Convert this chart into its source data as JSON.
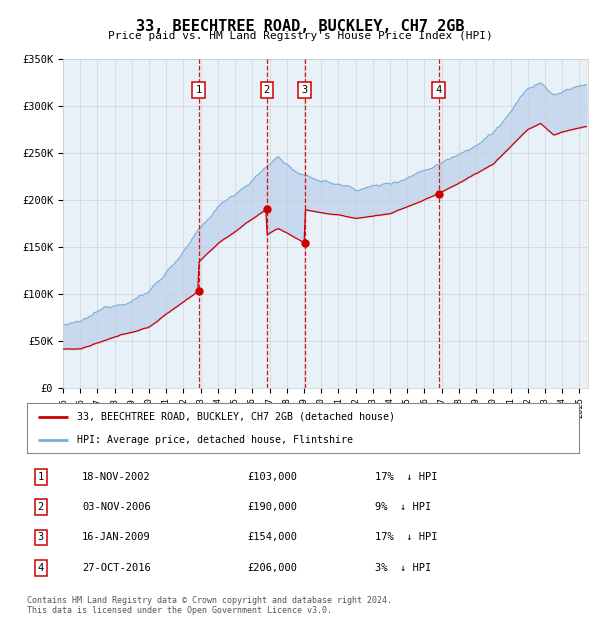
{
  "title": "33, BEECHTREE ROAD, BUCKLEY, CH7 2GB",
  "subtitle": "Price paid vs. HM Land Registry's House Price Index (HPI)",
  "ylim": [
    0,
    350000
  ],
  "yticks": [
    0,
    50000,
    100000,
    150000,
    200000,
    250000,
    300000,
    350000
  ],
  "ytick_labels": [
    "£0",
    "£50K",
    "£100K",
    "£150K",
    "£200K",
    "£250K",
    "£300K",
    "£350K"
  ],
  "xmin": 1995.0,
  "xmax": 2025.5,
  "sales": [
    {
      "num": 1,
      "date": "18-NOV-2002",
      "price": 103000,
      "year": 2002.88,
      "pct": "17%",
      "dir": "↓"
    },
    {
      "num": 2,
      "date": "03-NOV-2006",
      "price": 190000,
      "year": 2006.84,
      "pct": "9%",
      "dir": "↓"
    },
    {
      "num": 3,
      "date": "16-JAN-2009",
      "price": 154000,
      "year": 2009.04,
      "pct": "17%",
      "dir": "↓"
    },
    {
      "num": 4,
      "date": "27-OCT-2016",
      "price": 206000,
      "year": 2016.82,
      "pct": "3%",
      "dir": "↓"
    }
  ],
  "legend_label_red": "33, BEECHTREE ROAD, BUCKLEY, CH7 2GB (detached house)",
  "legend_label_blue": "HPI: Average price, detached house, Flintshire",
  "footer": "Contains HM Land Registry data © Crown copyright and database right 2024.\nThis data is licensed under the Open Government Licence v3.0.",
  "sale_color": "#cc0000",
  "hpi_color": "#7aafd4",
  "fill_color": "#c8d8ee",
  "grid_color": "#cccccc",
  "plot_bg": "#e8f0f8"
}
